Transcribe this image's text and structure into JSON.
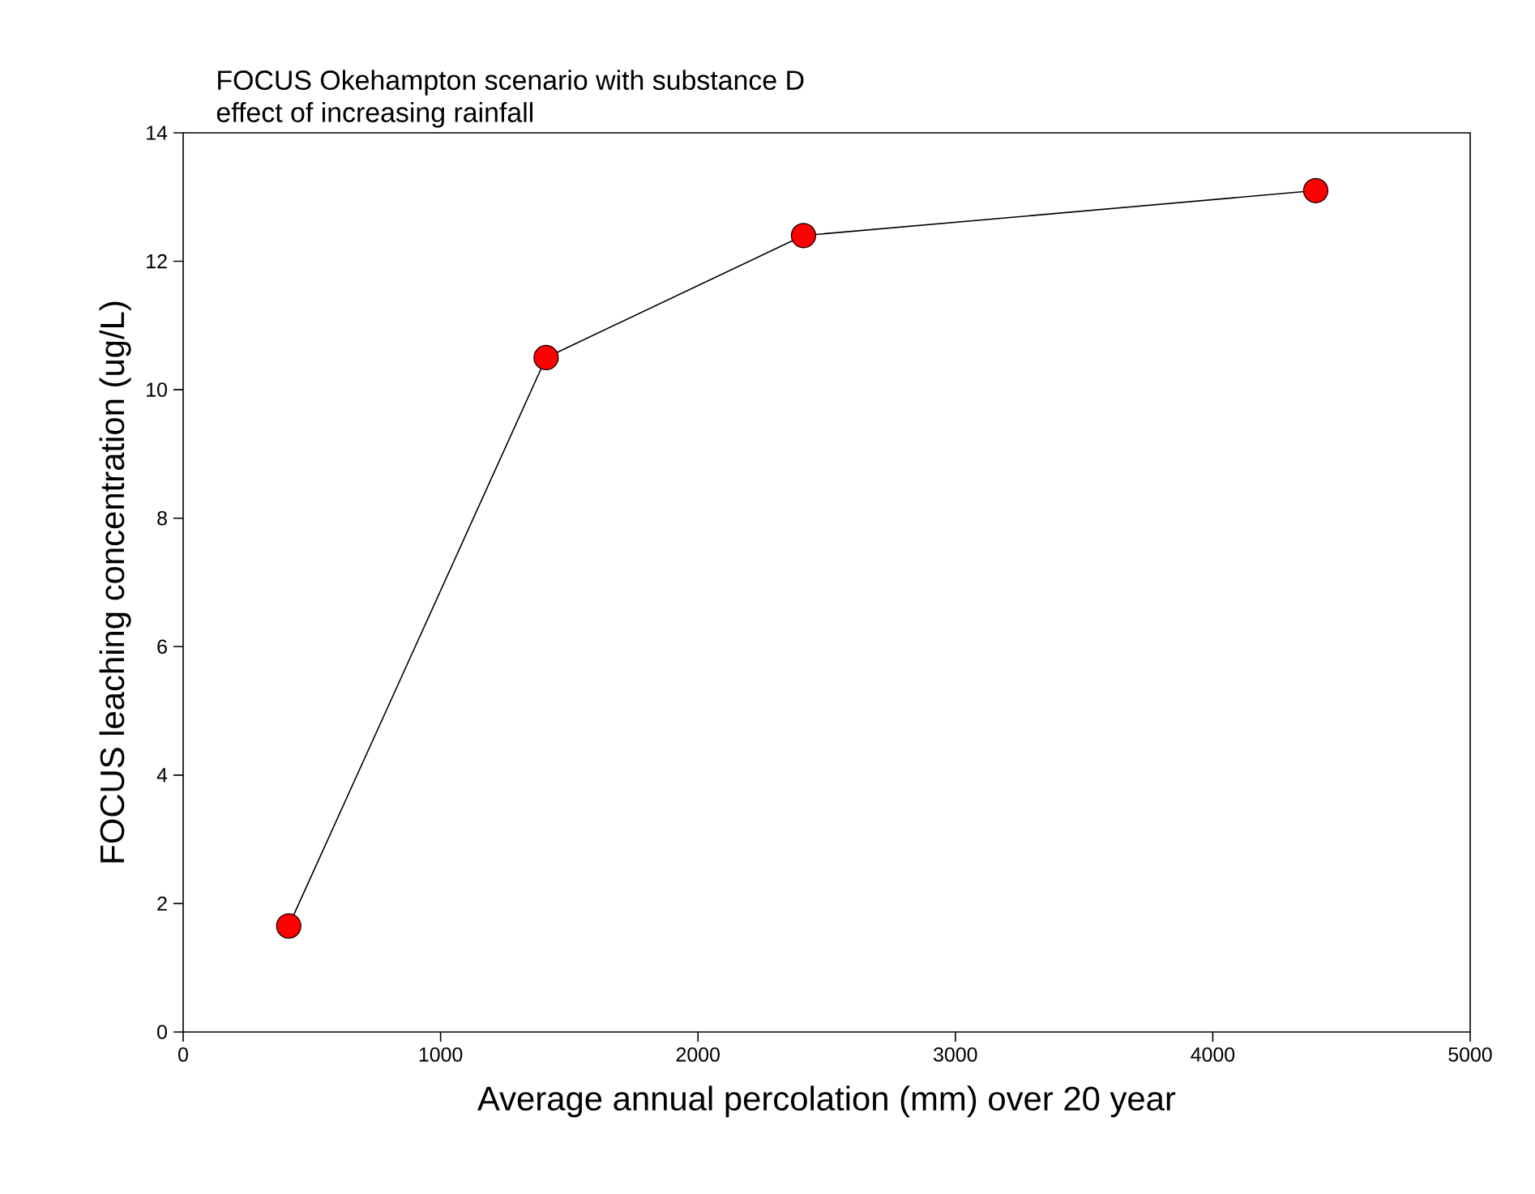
{
  "chart_data": {
    "type": "line",
    "title": "FOCUS Okehampton scenario with substance D",
    "subtitle": "effect of increasing rainfall",
    "xlabel": "Average annual percolation (mm) over 20 year",
    "ylabel": "FOCUS leaching concentration (ug/L)",
    "x": [
      410,
      1410,
      2410,
      4400
    ],
    "series": [
      {
        "color": "#ff0000",
        "values": [
          1.65,
          10.5,
          12.4,
          13.1
        ]
      }
    ],
    "xlim": [
      0,
      5000
    ],
    "xticks": [
      0,
      1000,
      2000,
      3000,
      4000,
      5000
    ],
    "ylim": [
      0,
      14
    ],
    "yticks": [
      0,
      2,
      4,
      6,
      8,
      10,
      12,
      14
    ],
    "marker": "circle",
    "line_style": "solid",
    "grid": false
  }
}
